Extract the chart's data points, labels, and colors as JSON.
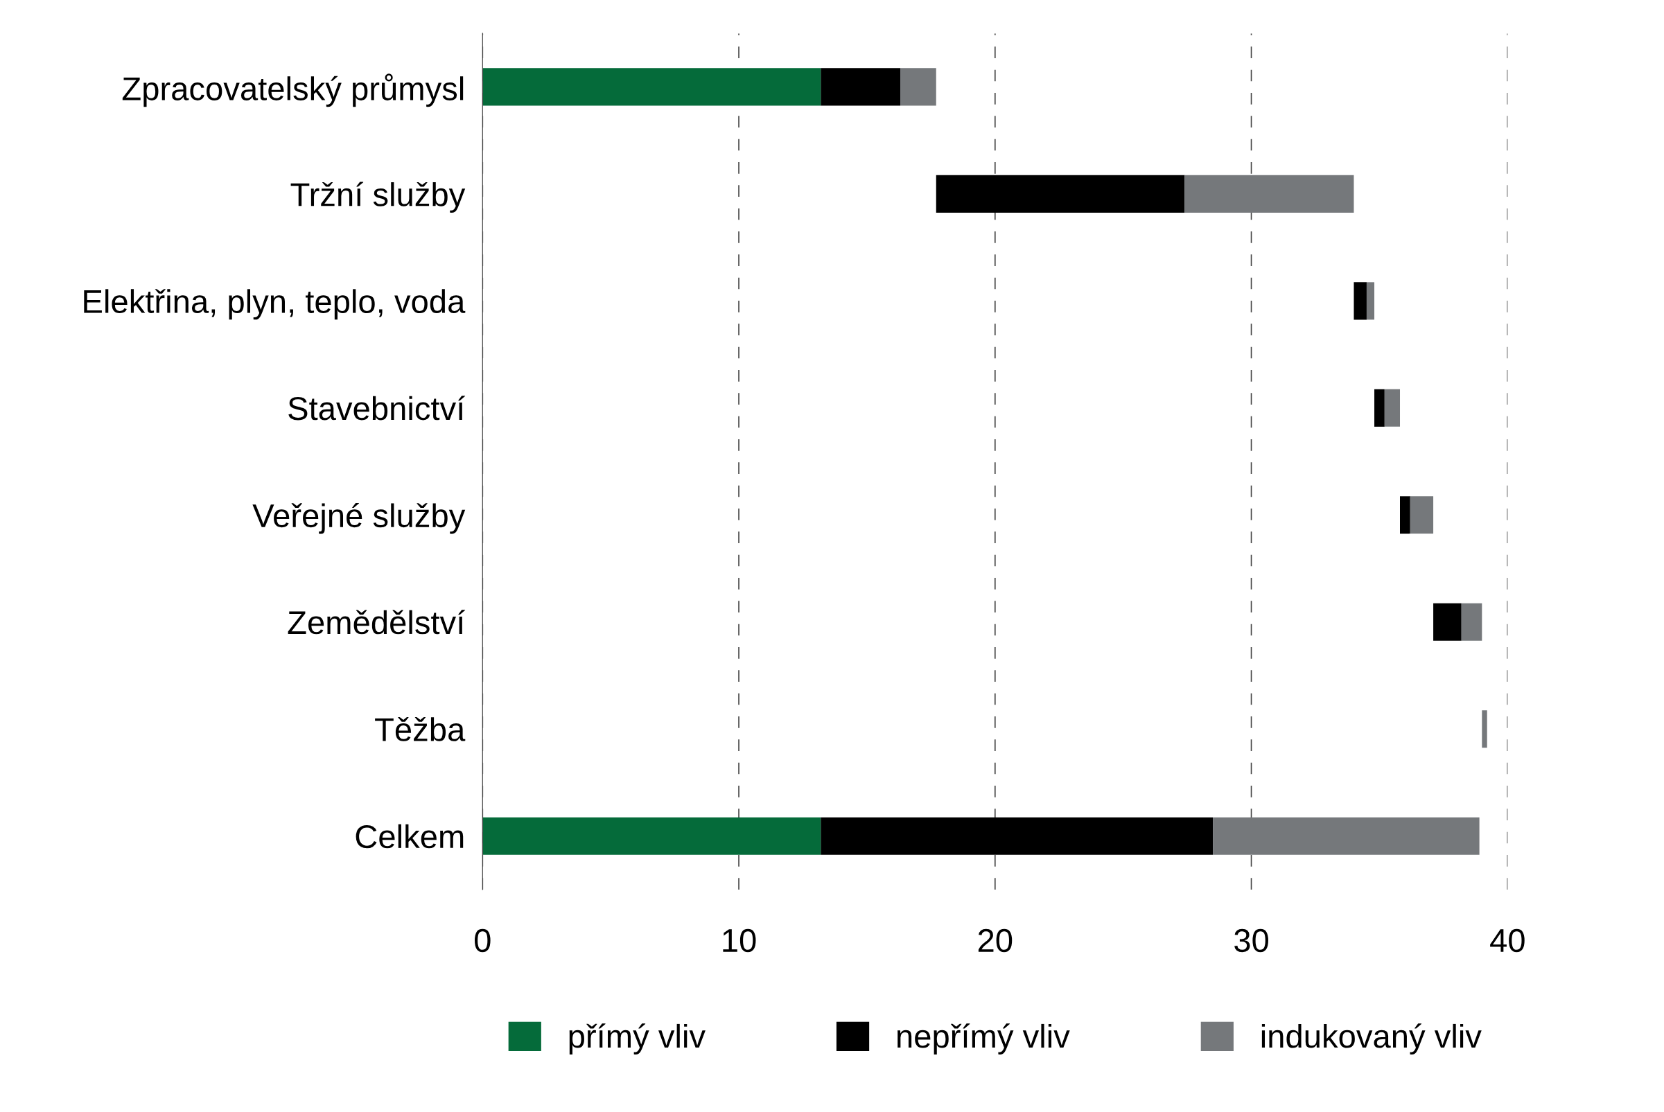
{
  "chart_data": {
    "type": "bar",
    "orientation": "horizontal",
    "categories": [
      "Zpracovatelský průmysl",
      "Tržní služby",
      "Elektřina, plyn, teplo, voda",
      "Stavebnictví",
      "Veřejné služby",
      "Zemědělství",
      "Těžba",
      "Celkem"
    ],
    "series": [
      {
        "name": "přímý vliv",
        "color": "#056b3a",
        "base": [
          0,
          null,
          null,
          null,
          null,
          null,
          null,
          0
        ],
        "values": [
          13.2,
          null,
          null,
          null,
          null,
          null,
          null,
          13.2
        ]
      },
      {
        "name": "nepřímý vliv",
        "color": "#000000",
        "base": [
          13.2,
          17.7,
          34.0,
          34.8,
          35.8,
          37.1,
          null,
          13.2
        ],
        "values": [
          3.1,
          9.7,
          0.5,
          0.4,
          0.4,
          1.1,
          null,
          15.3
        ]
      },
      {
        "name": "indukovaný vliv",
        "color": "#75787b",
        "base": [
          16.3,
          27.4,
          34.5,
          35.2,
          36.2,
          38.2,
          39.0,
          28.5
        ],
        "values": [
          1.4,
          6.6,
          0.3,
          0.6,
          0.9,
          0.8,
          0.2,
          10.4
        ]
      }
    ],
    "xlim": [
      0,
      40
    ],
    "xticks": [
      0,
      10,
      20,
      30,
      40
    ],
    "grid": "x",
    "legend": "bottom"
  }
}
